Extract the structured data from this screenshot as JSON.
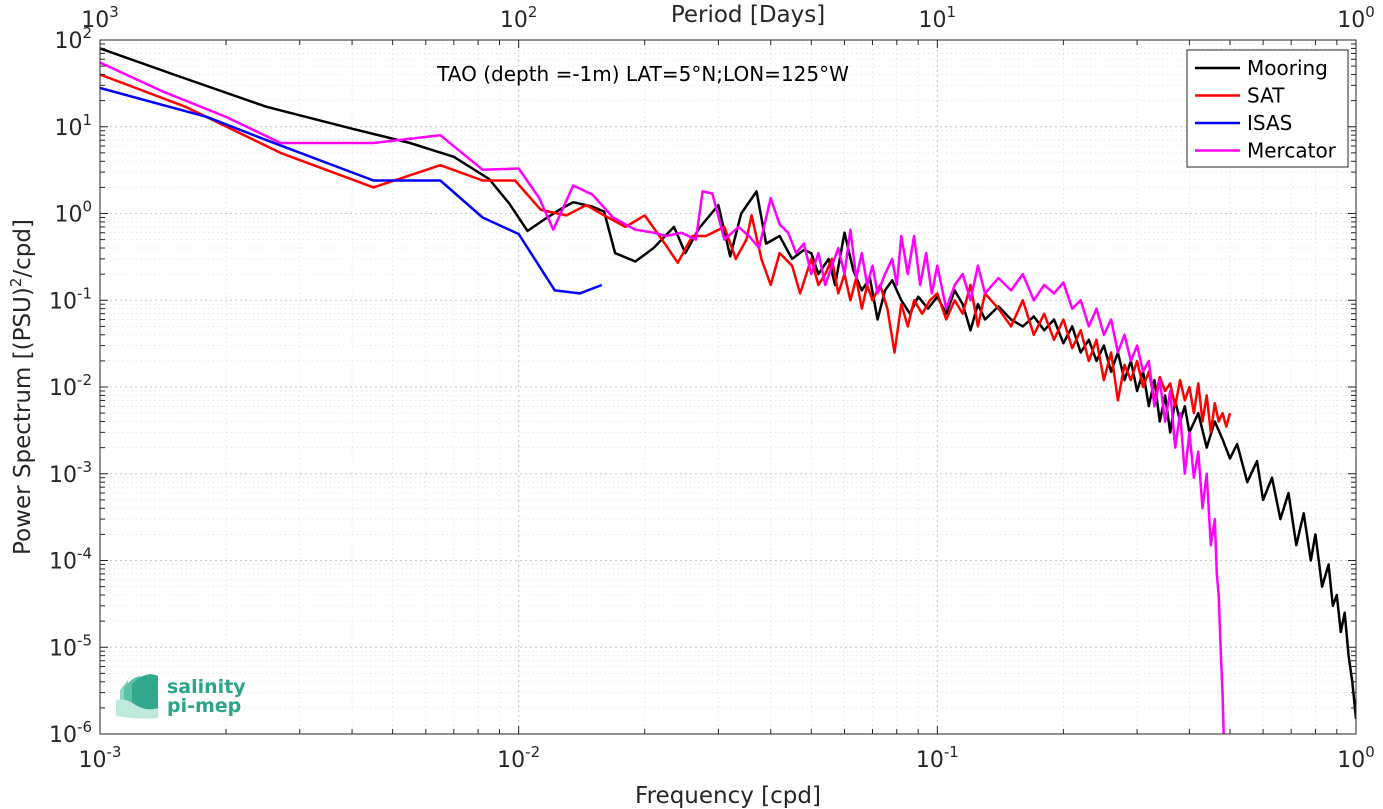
{
  "chart_data": {
    "type": "line",
    "title": "TAO (depth =-1m) LAT=5°N;LON=125°W",
    "xlabel": "Frequency [cpd]",
    "ylabel_main": "Power Spectrum [(PSU)",
    "ylabel_exp": "2",
    "ylabel_tail": "/cpd]",
    "top_xlabel": "Period [Days]",
    "xscale": "log",
    "yscale": "log",
    "xlim": [
      0.001,
      1
    ],
    "ylim": [
      1e-06,
      100
    ],
    "grid": true,
    "legend_position": "top-right",
    "x_ticks": [
      {
        "base": "10",
        "exp": "-3"
      },
      {
        "base": "10",
        "exp": "-2"
      },
      {
        "base": "10",
        "exp": "-1"
      },
      {
        "base": "10",
        "exp": "0"
      }
    ],
    "top_ticks": [
      {
        "base": "10",
        "exp": "3"
      },
      {
        "base": "10",
        "exp": "2"
      },
      {
        "base": "10",
        "exp": "1"
      },
      {
        "base": "10",
        "exp": "0"
      }
    ],
    "y_ticks": [
      {
        "base": "10",
        "exp": "2"
      },
      {
        "base": "10",
        "exp": "1"
      },
      {
        "base": "10",
        "exp": "0"
      },
      {
        "base": "10",
        "exp": "-1"
      },
      {
        "base": "10",
        "exp": "-2"
      },
      {
        "base": "10",
        "exp": "-3"
      },
      {
        "base": "10",
        "exp": "-4"
      },
      {
        "base": "10",
        "exp": "-5"
      },
      {
        "base": "10",
        "exp": "-6"
      }
    ],
    "series": [
      {
        "name": "Mooring",
        "color": "#000000",
        "points": [
          [
            0.001,
            80
          ],
          [
            0.0015,
            40
          ],
          [
            0.0025,
            17
          ],
          [
            0.004,
            9.5
          ],
          [
            0.0055,
            6.5
          ],
          [
            0.007,
            4.5
          ],
          [
            0.0085,
            2.5
          ],
          [
            0.0095,
            1.3
          ],
          [
            0.0105,
            0.63
          ],
          [
            0.0115,
            0.85
          ],
          [
            0.0125,
            1.1
          ],
          [
            0.0135,
            1.35
          ],
          [
            0.015,
            1.2
          ],
          [
            0.016,
            1.05
          ],
          [
            0.017,
            0.35
          ],
          [
            0.019,
            0.28
          ],
          [
            0.021,
            0.4
          ],
          [
            0.0235,
            0.7
          ],
          [
            0.025,
            0.35
          ],
          [
            0.027,
            0.68
          ],
          [
            0.03,
            1.25
          ],
          [
            0.032,
            0.32
          ],
          [
            0.034,
            1.0
          ],
          [
            0.037,
            1.8
          ],
          [
            0.039,
            0.45
          ],
          [
            0.042,
            0.55
          ],
          [
            0.045,
            0.3
          ],
          [
            0.048,
            0.38
          ],
          [
            0.05,
            0.35
          ],
          [
            0.052,
            0.2
          ],
          [
            0.055,
            0.3
          ],
          [
            0.057,
            0.15
          ],
          [
            0.06,
            0.6
          ],
          [
            0.063,
            0.22
          ],
          [
            0.066,
            0.13
          ],
          [
            0.069,
            0.18
          ],
          [
            0.072,
            0.06
          ],
          [
            0.075,
            0.13
          ],
          [
            0.078,
            0.17
          ],
          [
            0.082,
            0.1
          ],
          [
            0.086,
            0.07
          ],
          [
            0.09,
            0.11
          ],
          [
            0.095,
            0.08
          ],
          [
            0.1,
            0.11
          ],
          [
            0.105,
            0.07
          ],
          [
            0.11,
            0.13
          ],
          [
            0.115,
            0.09
          ],
          [
            0.12,
            0.045
          ],
          [
            0.125,
            0.09
          ],
          [
            0.13,
            0.06
          ],
          [
            0.14,
            0.085
          ],
          [
            0.15,
            0.06
          ],
          [
            0.16,
            0.05
          ],
          [
            0.17,
            0.065
          ],
          [
            0.18,
            0.045
          ],
          [
            0.19,
            0.06
          ],
          [
            0.2,
            0.032
          ],
          [
            0.21,
            0.05
          ],
          [
            0.22,
            0.025
          ],
          [
            0.23,
            0.035
          ],
          [
            0.24,
            0.02
          ],
          [
            0.25,
            0.03
          ],
          [
            0.26,
            0.015
          ],
          [
            0.27,
            0.025
          ],
          [
            0.28,
            0.012
          ],
          [
            0.29,
            0.02
          ],
          [
            0.3,
            0.009
          ],
          [
            0.31,
            0.015
          ],
          [
            0.32,
            0.006
          ],
          [
            0.33,
            0.012
          ],
          [
            0.34,
            0.004
          ],
          [
            0.35,
            0.008
          ],
          [
            0.36,
            0.003
          ],
          [
            0.37,
            0.007
          ],
          [
            0.38,
            0.004
          ],
          [
            0.39,
            0.006
          ],
          [
            0.4,
            0.003
          ],
          [
            0.42,
            0.005
          ],
          [
            0.44,
            0.002
          ],
          [
            0.46,
            0.004
          ],
          [
            0.48,
            0.0025
          ],
          [
            0.5,
            0.0015
          ],
          [
            0.52,
            0.0022
          ],
          [
            0.55,
            0.0008
          ],
          [
            0.58,
            0.0014
          ],
          [
            0.6,
            0.0005
          ],
          [
            0.63,
            0.0009
          ],
          [
            0.66,
            0.0003
          ],
          [
            0.69,
            0.0006
          ],
          [
            0.72,
            0.00015
          ],
          [
            0.75,
            0.00035
          ],
          [
            0.78,
            0.0001
          ],
          [
            0.8,
            0.0002
          ],
          [
            0.83,
            5e-05
          ],
          [
            0.86,
            9e-05
          ],
          [
            0.88,
            3e-05
          ],
          [
            0.9,
            4e-05
          ],
          [
            0.92,
            1.5e-05
          ],
          [
            0.94,
            2.5e-05
          ],
          [
            0.96,
            8e-06
          ],
          [
            0.98,
            4e-06
          ],
          [
            1.0,
            1.5e-06
          ]
        ]
      },
      {
        "name": "SAT",
        "color": "#ff0000",
        "points": [
          [
            0.001,
            40
          ],
          [
            0.0016,
            17
          ],
          [
            0.0027,
            5
          ],
          [
            0.0045,
            2
          ],
          [
            0.0065,
            3.6
          ],
          [
            0.0082,
            2.4
          ],
          [
            0.0098,
            2.4
          ],
          [
            0.0113,
            1.1
          ],
          [
            0.013,
            0.95
          ],
          [
            0.0145,
            1.25
          ],
          [
            0.016,
            0.95
          ],
          [
            0.018,
            0.7
          ],
          [
            0.02,
            0.95
          ],
          [
            0.022,
            0.5
          ],
          [
            0.024,
            0.27
          ],
          [
            0.026,
            0.55
          ],
          [
            0.028,
            0.55
          ],
          [
            0.031,
            0.7
          ],
          [
            0.033,
            0.3
          ],
          [
            0.035,
            0.5
          ],
          [
            0.036,
            0.95
          ],
          [
            0.038,
            0.3
          ],
          [
            0.04,
            0.15
          ],
          [
            0.042,
            0.35
          ],
          [
            0.045,
            0.25
          ],
          [
            0.047,
            0.12
          ],
          [
            0.05,
            0.3
          ],
          [
            0.052,
            0.15
          ],
          [
            0.054,
            0.2
          ],
          [
            0.056,
            0.3
          ],
          [
            0.058,
            0.12
          ],
          [
            0.06,
            0.2
          ],
          [
            0.062,
            0.1
          ],
          [
            0.064,
            0.18
          ],
          [
            0.066,
            0.08
          ],
          [
            0.068,
            0.15
          ],
          [
            0.07,
            0.1
          ],
          [
            0.073,
            0.15
          ],
          [
            0.076,
            0.08
          ],
          [
            0.079,
            0.025
          ],
          [
            0.082,
            0.09
          ],
          [
            0.085,
            0.05
          ],
          [
            0.088,
            0.1
          ],
          [
            0.092,
            0.07
          ],
          [
            0.096,
            0.1
          ],
          [
            0.1,
            0.12
          ],
          [
            0.105,
            0.06
          ],
          [
            0.11,
            0.1
          ],
          [
            0.115,
            0.07
          ],
          [
            0.12,
            0.15
          ],
          [
            0.125,
            0.05
          ],
          [
            0.13,
            0.12
          ],
          [
            0.14,
            0.08
          ],
          [
            0.15,
            0.05
          ],
          [
            0.16,
            0.1
          ],
          [
            0.17,
            0.04
          ],
          [
            0.18,
            0.07
          ],
          [
            0.19,
            0.035
          ],
          [
            0.2,
            0.06
          ],
          [
            0.21,
            0.028
          ],
          [
            0.22,
            0.045
          ],
          [
            0.23,
            0.02
          ],
          [
            0.24,
            0.035
          ],
          [
            0.25,
            0.012
          ],
          [
            0.26,
            0.025
          ],
          [
            0.27,
            0.007
          ],
          [
            0.28,
            0.018
          ],
          [
            0.29,
            0.012
          ],
          [
            0.3,
            0.02
          ],
          [
            0.31,
            0.01
          ],
          [
            0.32,
            0.015
          ],
          [
            0.33,
            0.007
          ],
          [
            0.34,
            0.013
          ],
          [
            0.35,
            0.009
          ],
          [
            0.36,
            0.011
          ],
          [
            0.37,
            0.006
          ],
          [
            0.38,
            0.012
          ],
          [
            0.39,
            0.007
          ],
          [
            0.4,
            0.01
          ],
          [
            0.41,
            0.005
          ],
          [
            0.42,
            0.011
          ],
          [
            0.43,
            0.004
          ],
          [
            0.44,
            0.008
          ],
          [
            0.45,
            0.003
          ],
          [
            0.46,
            0.0065
          ],
          [
            0.47,
            0.004
          ],
          [
            0.48,
            0.005
          ],
          [
            0.49,
            0.0035
          ],
          [
            0.5,
            0.005
          ]
        ]
      },
      {
        "name": "ISAS",
        "color": "#0000ff",
        "points": [
          [
            0.001,
            28
          ],
          [
            0.0018,
            13
          ],
          [
            0.0025,
            7
          ],
          [
            0.0045,
            2.4
          ],
          [
            0.0065,
            2.4
          ],
          [
            0.0082,
            0.9
          ],
          [
            0.01,
            0.58
          ],
          [
            0.0122,
            0.13
          ],
          [
            0.014,
            0.12
          ],
          [
            0.0158,
            0.15
          ]
        ]
      },
      {
        "name": "Mercator",
        "color": "#ff00ff",
        "points": [
          [
            0.001,
            55
          ],
          [
            0.0014,
            26
          ],
          [
            0.002,
            13
          ],
          [
            0.0027,
            6.5
          ],
          [
            0.0045,
            6.5
          ],
          [
            0.0065,
            8
          ],
          [
            0.0082,
            3.2
          ],
          [
            0.01,
            3.3
          ],
          [
            0.0112,
            1.5
          ],
          [
            0.0121,
            0.65
          ],
          [
            0.0135,
            2.1
          ],
          [
            0.015,
            1.65
          ],
          [
            0.0168,
            0.9
          ],
          [
            0.019,
            0.65
          ],
          [
            0.021,
            0.6
          ],
          [
            0.0225,
            0.55
          ],
          [
            0.0245,
            0.6
          ],
          [
            0.0265,
            0.5
          ],
          [
            0.0275,
            1.8
          ],
          [
            0.029,
            1.7
          ],
          [
            0.031,
            0.5
          ],
          [
            0.0335,
            0.7
          ],
          [
            0.0355,
            0.55
          ],
          [
            0.0375,
            0.4
          ],
          [
            0.04,
            1.5
          ],
          [
            0.042,
            0.75
          ],
          [
            0.044,
            0.6
          ],
          [
            0.046,
            0.35
          ],
          [
            0.048,
            0.45
          ],
          [
            0.05,
            0.2
          ],
          [
            0.052,
            0.35
          ],
          [
            0.054,
            0.15
          ],
          [
            0.056,
            0.25
          ],
          [
            0.058,
            0.4
          ],
          [
            0.06,
            0.2
          ],
          [
            0.062,
            0.65
          ],
          [
            0.064,
            0.18
          ],
          [
            0.066,
            0.35
          ],
          [
            0.068,
            0.15
          ],
          [
            0.07,
            0.25
          ],
          [
            0.072,
            0.12
          ],
          [
            0.075,
            0.2
          ],
          [
            0.078,
            0.3
          ],
          [
            0.08,
            0.15
          ],
          [
            0.082,
            0.55
          ],
          [
            0.085,
            0.2
          ],
          [
            0.088,
            0.55
          ],
          [
            0.091,
            0.15
          ],
          [
            0.094,
            0.35
          ],
          [
            0.097,
            0.12
          ],
          [
            0.1,
            0.25
          ],
          [
            0.105,
            0.08
          ],
          [
            0.11,
            0.15
          ],
          [
            0.115,
            0.2
          ],
          [
            0.12,
            0.1
          ],
          [
            0.125,
            0.25
          ],
          [
            0.13,
            0.12
          ],
          [
            0.14,
            0.18
          ],
          [
            0.15,
            0.13
          ],
          [
            0.16,
            0.2
          ],
          [
            0.17,
            0.1
          ],
          [
            0.18,
            0.15
          ],
          [
            0.19,
            0.12
          ],
          [
            0.2,
            0.16
          ],
          [
            0.21,
            0.08
          ],
          [
            0.22,
            0.1
          ],
          [
            0.23,
            0.05
          ],
          [
            0.24,
            0.08
          ],
          [
            0.25,
            0.04
          ],
          [
            0.26,
            0.06
          ],
          [
            0.27,
            0.025
          ],
          [
            0.28,
            0.04
          ],
          [
            0.29,
            0.02
          ],
          [
            0.3,
            0.03
          ],
          [
            0.31,
            0.015
          ],
          [
            0.32,
            0.02
          ],
          [
            0.33,
            0.006
          ],
          [
            0.34,
            0.012
          ],
          [
            0.35,
            0.004
          ],
          [
            0.36,
            0.009
          ],
          [
            0.37,
            0.002
          ],
          [
            0.38,
            0.005
          ],
          [
            0.39,
            0.001
          ],
          [
            0.4,
            0.003
          ],
          [
            0.41,
            0.0009
          ],
          [
            0.42,
            0.0018
          ],
          [
            0.43,
            0.0004
          ],
          [
            0.44,
            0.001
          ],
          [
            0.45,
            0.00015
          ],
          [
            0.46,
            0.0003
          ],
          [
            0.465,
            7e-05
          ],
          [
            0.47,
            4e-05
          ],
          [
            0.475,
            1e-05
          ],
          [
            0.48,
            3e-06
          ],
          [
            0.483,
            1e-06
          ]
        ]
      }
    ]
  },
  "logo": {
    "line1": "salinity",
    "line2": "pi-mep"
  }
}
